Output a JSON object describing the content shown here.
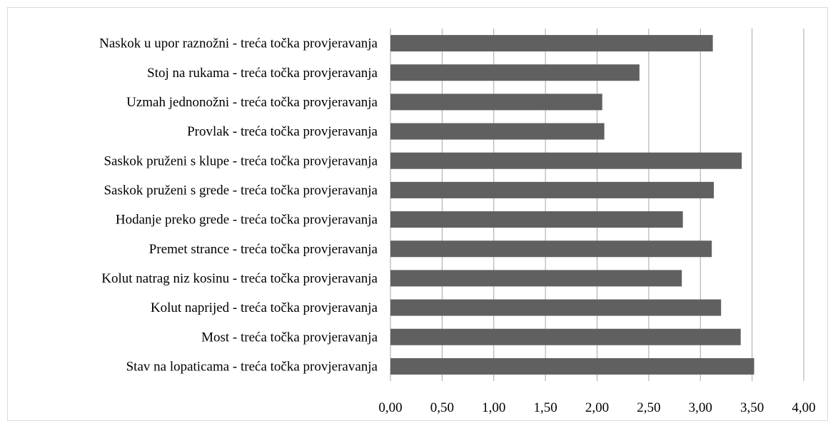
{
  "chart_data": {
    "type": "bar",
    "orientation": "horizontal",
    "title": "",
    "xlabel": "",
    "ylabel": "",
    "categories": [
      "Naskok u upor raznožni - treća točka provjeravanja",
      "Stoj na rukama - treća točka provjeravanja",
      "Uzmah jednonožni - treća točka provjeravanja",
      "Provlak - treća točka provjeravanja",
      "Saskok pruženi s klupe - treća točka provjeravanja",
      "Saskok pruženi s grede - treća točka provjeravanja",
      "Hodanje preko grede - treća točka provjeravanja",
      "Premet strance - treća točka provjeravanja",
      "Kolut natrag niz kosinu - treća točka provjeravanja",
      "Kolut naprijed - treća točka provjeravanja",
      "Most - treća točka provjeravanja",
      "Stav na lopaticama - treća točka provjeravanja"
    ],
    "values": [
      3.12,
      2.41,
      2.05,
      2.07,
      3.4,
      3.13,
      2.83,
      3.11,
      2.82,
      3.2,
      3.39,
      3.52
    ],
    "xlim": [
      0,
      4
    ],
    "xticks": [
      "0,00",
      "0,50",
      "1,00",
      "1,50",
      "2,00",
      "2,50",
      "3,00",
      "3,50",
      "4,00"
    ],
    "grid": "vertical",
    "bar_color": "#606060",
    "grid_color": "#a6a6a6",
    "legend": "none"
  }
}
